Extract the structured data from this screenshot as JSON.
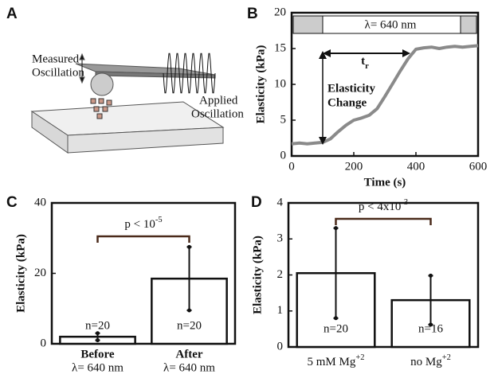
{
  "diagram": {
    "panel_label": "A",
    "measured_label": [
      "Measured",
      "Oscillation"
    ],
    "applied_label": [
      "Applied",
      "Oscillation"
    ]
  },
  "chart_data": [
    {
      "type": "line",
      "panel_label": "B",
      "xlabel": "Time (s)",
      "ylabel": "Elasticity (kPa)",
      "x": [
        0,
        25,
        50,
        75,
        100,
        125,
        150,
        175,
        200,
        225,
        250,
        275,
        300,
        325,
        350,
        375,
        400,
        425,
        450,
        475,
        500,
        525,
        550,
        575,
        600
      ],
      "series": [
        {
          "color": "#8a8a8a",
          "values": [
            1.7,
            1.8,
            1.7,
            1.8,
            1.9,
            2.4,
            3.4,
            4.3,
            5.0,
            5.3,
            5.7,
            6.6,
            8.3,
            10.1,
            11.9,
            13.6,
            14.9,
            15.1,
            15.2,
            15.0,
            15.2,
            15.3,
            15.2,
            15.3,
            15.4
          ]
        }
      ],
      "xlim": [
        0,
        600
      ],
      "xticks": [
        0,
        200,
        400,
        600
      ],
      "ylim": [
        0,
        20
      ],
      "yticks": [
        0,
        5,
        10,
        15,
        20
      ],
      "band_label": "λ= 640 nm",
      "rise_label": {
        "text": "t",
        "subscript": "r"
      },
      "change_label": [
        "Elasticity",
        "Change"
      ]
    },
    {
      "type": "bar",
      "panel_label": "C",
      "ylabel": "Elasticity (kPa)",
      "categories": [
        "Before",
        "After"
      ],
      "category_sublabels": [
        "λ= 640 nm",
        "λ= 640 nm"
      ],
      "values": [
        2,
        18.5
      ],
      "errors": [
        1,
        9
      ],
      "n_labels": [
        "n=20",
        "n=20"
      ],
      "ylim": [
        0,
        40
      ],
      "yticks": [
        0,
        20,
        40
      ],
      "significance": {
        "text": "p < 10",
        "superscript": "-5"
      }
    },
    {
      "type": "bar",
      "panel_label": "D",
      "ylabel": "Elasticity (kPa)",
      "categories": [
        "5 mM Mg",
        "no Mg"
      ],
      "category_superscripts": [
        "+2",
        "+2"
      ],
      "values": [
        2.05,
        1.3
      ],
      "errors": [
        1.25,
        0.68
      ],
      "n_labels": [
        "n=20",
        "n=16"
      ],
      "ylim": [
        0,
        4
      ],
      "yticks": [
        0,
        1,
        2,
        3,
        4
      ],
      "significance": {
        "text": "p < 4x10",
        "superscript": "-3"
      }
    }
  ]
}
